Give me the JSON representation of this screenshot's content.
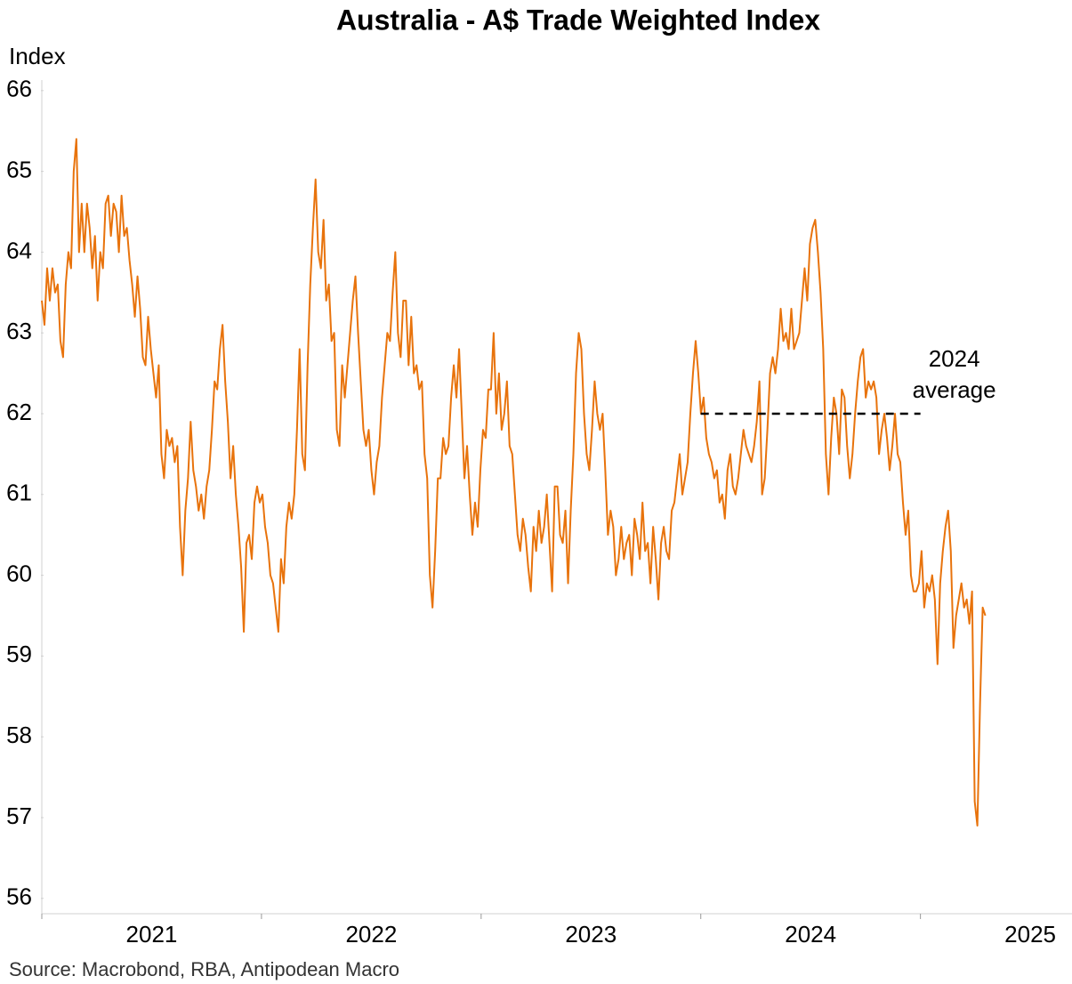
{
  "chart_data": {
    "type": "line",
    "title": "Australia - A$ Trade Weighted Index",
    "y_label": "Index",
    "source": "Source: Macrobond, RBA, Antipodean Macro",
    "color": "#e8730c",
    "ylim": [
      55.81,
      66.13
    ],
    "yticks": [
      56,
      57,
      58,
      59,
      60,
      61,
      62,
      63,
      64,
      65,
      66
    ],
    "xlim": [
      2021,
      2025.69
    ],
    "xticks": [
      2021,
      2022,
      2023,
      2024,
      2025
    ],
    "reference_line": {
      "label_lines": [
        "2024",
        "average"
      ],
      "value": 62,
      "x": [
        2024,
        2025
      ],
      "color": "#000000",
      "style": "dashed"
    },
    "x": [
      2021,
      2021.0121,
      2021.0242,
      2021.0363,
      2021.0484,
      2021.0605,
      2021.0726,
      2021.0847,
      2021.0968,
      2021.1089,
      2021.121,
      2021.1331,
      2021.1452,
      2021.1573,
      2021.1694,
      2021.1815,
      2021.1936,
      2021.2057,
      2021.2178,
      2021.2299,
      2021.242,
      2021.2541,
      2021.2662,
      2021.2783,
      2021.2904,
      2021.3025,
      2021.3146,
      2021.3267,
      2021.3388,
      2021.3509,
      2021.363,
      2021.3751,
      2021.3872,
      2021.3993,
      2021.4114,
      2021.4235,
      2021.4356,
      2021.4477,
      2021.4598,
      2021.4719,
      2021.484,
      2021.4961,
      2021.5082,
      2021.5203,
      2021.5324,
      2021.5445,
      2021.5566,
      2021.5687,
      2021.5808,
      2021.5929,
      2021.605,
      2021.6171,
      2021.6292,
      2021.6413,
      2021.6534,
      2021.6655,
      2021.6776,
      2021.6897,
      2021.7018,
      2021.7139,
      2021.726,
      2021.7381,
      2021.7502,
      2021.7623,
      2021.7744,
      2021.7865,
      2021.7986,
      2021.8107,
      2021.8228,
      2021.8349,
      2021.847,
      2021.8591,
      2021.8712,
      2021.8833,
      2021.8954,
      2021.9075,
      2021.9196,
      2021.9317,
      2021.9438,
      2021.9559,
      2021.968,
      2021.9801,
      2021.9922,
      2022.0043,
      2022.0164,
      2022.0285,
      2022.0406,
      2022.0527,
      2022.0648,
      2022.0769,
      2022.089,
      2022.1011,
      2022.1132,
      2022.1253,
      2022.1374,
      2022.1495,
      2022.1616,
      2022.1737,
      2022.1858,
      2022.1979,
      2022.21,
      2022.2221,
      2022.2342,
      2022.2463,
      2022.2584,
      2022.2705,
      2022.2826,
      2022.2947,
      2022.3068,
      2022.3189,
      2022.331,
      2022.3431,
      2022.3552,
      2022.3673,
      2022.3794,
      2022.3915,
      2022.4036,
      2022.4157,
      2022.4278,
      2022.4399,
      2022.452,
      2022.4641,
      2022.4762,
      2022.4883,
      2022.5004,
      2022.5125,
      2022.5246,
      2022.5367,
      2022.5488,
      2022.5609,
      2022.573,
      2022.5851,
      2022.5972,
      2022.6093,
      2022.6214,
      2022.6335,
      2022.6456,
      2022.6577,
      2022.6698,
      2022.6819,
      2022.694,
      2022.7061,
      2022.7182,
      2022.7303,
      2022.7424,
      2022.7545,
      2022.7666,
      2022.7787,
      2022.7908,
      2022.8029,
      2022.815,
      2022.8271,
      2022.8392,
      2022.8513,
      2022.8634,
      2022.8755,
      2022.8876,
      2022.8997,
      2022.9118,
      2022.9239,
      2022.936,
      2022.9481,
      2022.9602,
      2022.9723,
      2022.9844,
      2022.9965,
      2023.0086,
      2023.0207,
      2023.0328,
      2023.0449,
      2023.057,
      2023.0691,
      2023.0812,
      2023.0933,
      2023.1054,
      2023.1175,
      2023.1296,
      2023.1417,
      2023.1538,
      2023.1659,
      2023.178,
      2023.1901,
      2023.2022,
      2023.2143,
      2023.2264,
      2023.2385,
      2023.2506,
      2023.2627,
      2023.2748,
      2023.2869,
      2023.299,
      2023.3111,
      2023.3232,
      2023.3353,
      2023.3474,
      2023.3595,
      2023.3716,
      2023.3837,
      2023.3958,
      2023.4079,
      2023.42,
      2023.4321,
      2023.4442,
      2023.4563,
      2023.4684,
      2023.4805,
      2023.4926,
      2023.5047,
      2023.5168,
      2023.5289,
      2023.541,
      2023.5531,
      2023.5652,
      2023.5773,
      2023.5894,
      2023.6015,
      2023.6136,
      2023.6257,
      2023.6378,
      2023.6499,
      2023.662,
      2023.6741,
      2023.6862,
      2023.6983,
      2023.7104,
      2023.7225,
      2023.7346,
      2023.7467,
      2023.7588,
      2023.7709,
      2023.783,
      2023.7951,
      2023.8072,
      2023.8193,
      2023.8314,
      2023.8435,
      2023.8556,
      2023.8677,
      2023.8798,
      2023.8919,
      2023.904,
      2023.9161,
      2023.9282,
      2023.9403,
      2023.9524,
      2023.9645,
      2023.9766,
      2023.9887,
      2024.0008,
      2024.0129,
      2024.025,
      2024.0371,
      2024.0492,
      2024.0613,
      2024.0734,
      2024.0855,
      2024.0976,
      2024.1097,
      2024.1218,
      2024.1339,
      2024.146,
      2024.1581,
      2024.1702,
      2024.1823,
      2024.1944,
      2024.2065,
      2024.2186,
      2024.2307,
      2024.2428,
      2024.2549,
      2024.267,
      2024.2791,
      2024.2912,
      2024.3033,
      2024.3154,
      2024.3275,
      2024.3396,
      2024.3517,
      2024.3638,
      2024.3759,
      2024.388,
      2024.4001,
      2024.4122,
      2024.4243,
      2024.4364,
      2024.4485,
      2024.4606,
      2024.4727,
      2024.4848,
      2024.4969,
      2024.509,
      2024.5211,
      2024.5332,
      2024.5453,
      2024.5574,
      2024.5695,
      2024.5816,
      2024.5937,
      2024.6058,
      2024.6179,
      2024.63,
      2024.6421,
      2024.6542,
      2024.6663,
      2024.6784,
      2024.6905,
      2024.7026,
      2024.7147,
      2024.7268,
      2024.7389,
      2024.751,
      2024.7631,
      2024.7752,
      2024.7873,
      2024.7994,
      2024.8115,
      2024.8236,
      2024.8357,
      2024.8478,
      2024.8599,
      2024.872,
      2024.8841,
      2024.8962,
      2024.9083,
      2024.9204,
      2024.9325,
      2024.9446,
      2024.9567,
      2024.9688,
      2024.9809,
      2024.993,
      2025.0051,
      2025.0172,
      2025.0293,
      2025.0414,
      2025.0535,
      2025.0656,
      2025.0777,
      2025.0898,
      2025.1019,
      2025.114,
      2025.1261,
      2025.1382,
      2025.1503,
      2025.1624,
      2025.1745,
      2025.1866,
      2025.1987,
      2025.2108,
      2025.2229,
      2025.235,
      2025.2471,
      2025.2592,
      2025.2713,
      2025.2834,
      2025.2955
    ],
    "values": [
      63.4,
      63.1,
      63.8,
      63.4,
      63.8,
      63.5,
      63.6,
      62.9,
      62.7,
      63.6,
      64.0,
      63.8,
      65.0,
      65.4,
      64.0,
      64.6,
      64.0,
      64.6,
      64.3,
      63.8,
      64.2,
      63.4,
      64.0,
      63.8,
      64.6,
      64.7,
      64.2,
      64.6,
      64.5,
      64.0,
      64.7,
      64.2,
      64.3,
      63.9,
      63.6,
      63.2,
      63.7,
      63.3,
      62.7,
      62.6,
      63.2,
      62.8,
      62.5,
      62.2,
      62.6,
      61.5,
      61.2,
      61.8,
      61.6,
      61.7,
      61.4,
      61.6,
      60.6,
      60.0,
      60.8,
      61.2,
      61.9,
      61.3,
      61.1,
      60.8,
      61.0,
      60.7,
      61.1,
      61.3,
      61.8,
      62.4,
      62.3,
      62.8,
      63.1,
      62.4,
      61.9,
      61.2,
      61.6,
      61.0,
      60.6,
      60.1,
      59.3,
      60.4,
      60.5,
      60.2,
      60.9,
      61.1,
      60.9,
      61.0,
      60.6,
      60.4,
      60.0,
      59.9,
      59.6,
      59.3,
      60.2,
      59.9,
      60.6,
      60.9,
      60.7,
      61.0,
      61.8,
      62.8,
      61.5,
      61.3,
      62.6,
      63.6,
      64.3,
      64.9,
      64.0,
      63.8,
      64.4,
      63.4,
      63.6,
      62.9,
      63.0,
      61.8,
      61.6,
      62.6,
      62.2,
      62.6,
      63.0,
      63.4,
      63.7,
      63.0,
      62.4,
      61.8,
      61.6,
      61.8,
      61.3,
      61.0,
      61.4,
      61.6,
      62.2,
      62.6,
      63.0,
      62.9,
      63.5,
      64.0,
      63.0,
      62.7,
      63.4,
      63.4,
      62.6,
      63.2,
      62.5,
      62.6,
      62.3,
      62.4,
      61.5,
      61.2,
      60.0,
      59.6,
      60.3,
      61.2,
      61.2,
      61.7,
      61.5,
      61.6,
      62.2,
      62.6,
      62.2,
      62.8,
      62.0,
      61.2,
      61.6,
      61.0,
      60.5,
      60.9,
      60.6,
      61.3,
      61.8,
      61.7,
      62.3,
      62.3,
      63.0,
      62.0,
      62.5,
      61.8,
      62.0,
      62.4,
      61.6,
      61.5,
      61.0,
      60.5,
      60.3,
      60.7,
      60.5,
      60.1,
      59.8,
      60.6,
      60.3,
      60.8,
      60.4,
      60.6,
      61.0,
      60.4,
      59.8,
      61.1,
      61.1,
      60.5,
      60.4,
      60.8,
      59.9,
      60.8,
      61.5,
      62.5,
      63.0,
      62.8,
      62.0,
      61.5,
      61.3,
      61.8,
      62.4,
      62.0,
      61.8,
      62.0,
      61.3,
      60.5,
      60.8,
      60.6,
      60.0,
      60.2,
      60.6,
      60.2,
      60.4,
      60.5,
      60.0,
      60.7,
      60.5,
      60.2,
      60.9,
      60.3,
      60.4,
      59.9,
      60.6,
      60.2,
      59.7,
      60.4,
      60.6,
      60.3,
      60.2,
      60.8,
      60.9,
      61.2,
      61.5,
      61.0,
      61.2,
      61.4,
      62.0,
      62.5,
      62.9,
      62.5,
      62.0,
      62.2,
      61.7,
      61.5,
      61.4,
      61.2,
      61.3,
      60.9,
      61.0,
      60.7,
      61.3,
      61.5,
      61.1,
      61.0,
      61.2,
      61.5,
      61.8,
      61.6,
      61.5,
      61.4,
      61.6,
      61.9,
      62.4,
      61.0,
      61.2,
      61.8,
      62.5,
      62.7,
      62.5,
      62.8,
      63.3,
      62.9,
      63.0,
      62.8,
      63.3,
      62.8,
      62.9,
      63.0,
      63.4,
      63.8,
      63.4,
      64.1,
      64.3,
      64.4,
      64.0,
      63.5,
      62.8,
      61.5,
      61.0,
      61.7,
      62.2,
      62.0,
      61.5,
      62.3,
      62.2,
      61.6,
      61.2,
      61.5,
      62.0,
      62.4,
      62.7,
      62.8,
      62.2,
      62.4,
      62.3,
      62.4,
      62.2,
      61.5,
      61.8,
      62.0,
      61.7,
      61.3,
      61.6,
      62.0,
      61.5,
      61.4,
      60.9,
      60.5,
      60.8,
      60.0,
      59.8,
      59.8,
      59.9,
      60.3,
      59.6,
      59.9,
      59.8,
      60.0,
      59.7,
      58.9,
      59.9,
      60.3,
      60.6,
      60.8,
      60.3,
      59.1,
      59.5,
      59.7,
      59.9,
      59.6,
      59.7,
      59.4,
      59.8,
      57.2,
      56.9,
      58.4,
      59.6,
      59.5
    ]
  }
}
